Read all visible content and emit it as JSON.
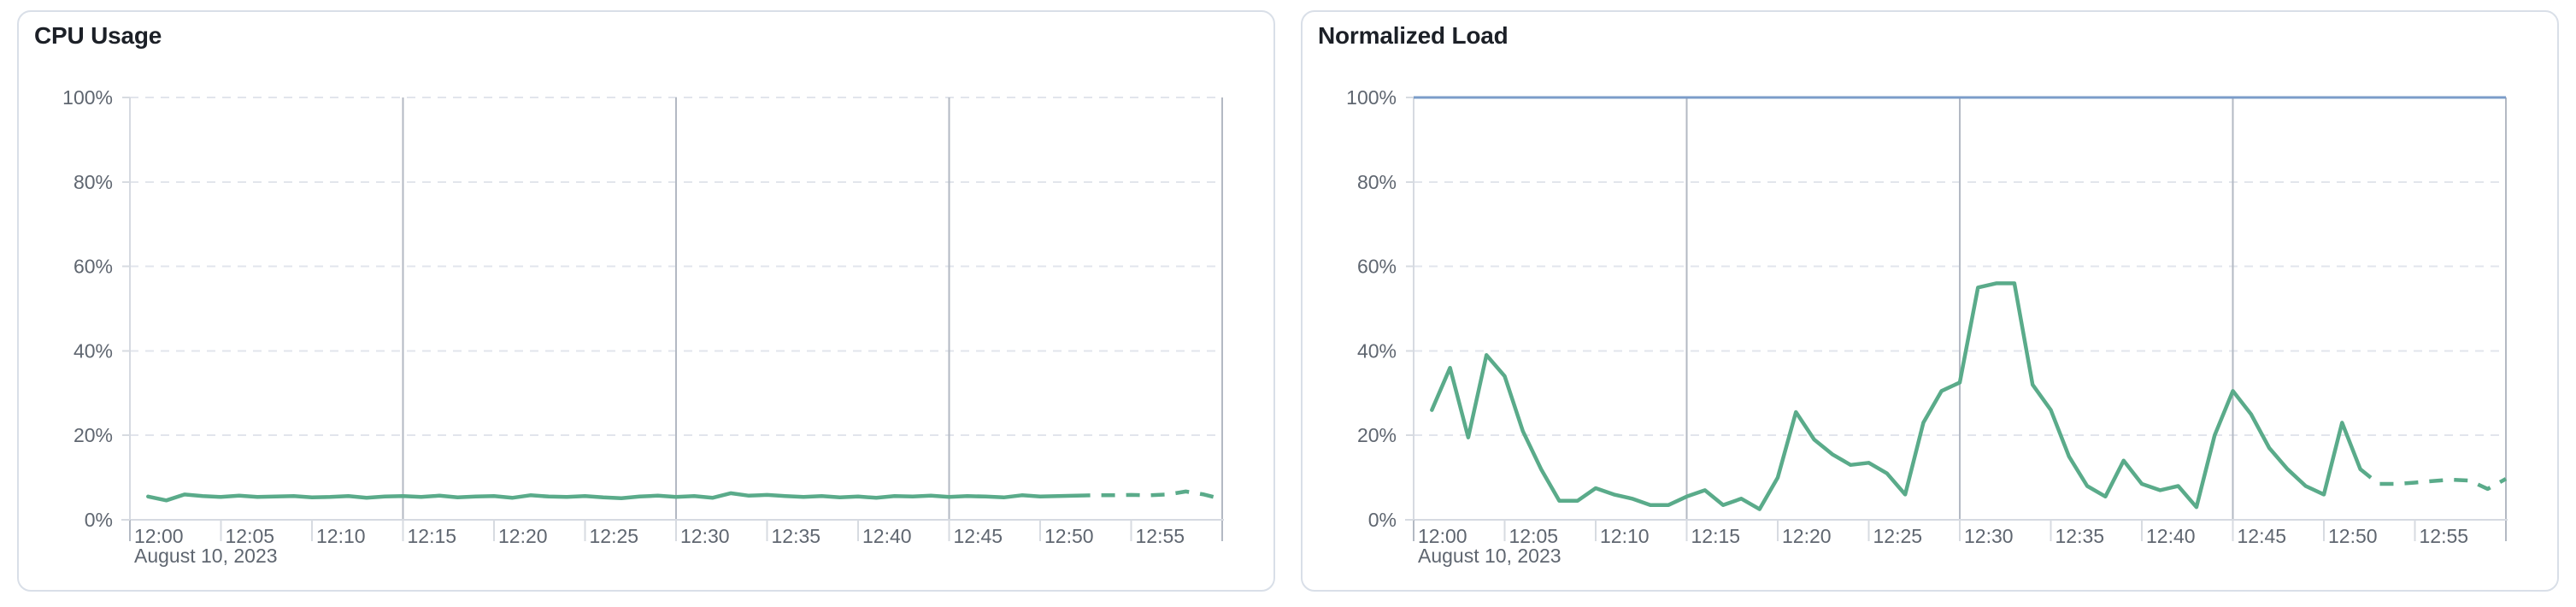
{
  "style": {
    "page_bg": "#ffffff",
    "card_bg": "#ffffff",
    "card_border": "#d9dfe8",
    "title_color": "#1c2027",
    "axis_text_color": "#5f6670",
    "gridline_dashed_color": "#e2e5ec",
    "gridline_major_color": "#b3b9c3",
    "axis_line_color": "#d6dae1",
    "tick_color": "#d7dbe1",
    "series_green": "#5aab8a",
    "threshold_blue": "#7b9cc9"
  },
  "panels": [
    {
      "title": "CPU Usage"
    },
    {
      "title": "Normalized Load"
    }
  ],
  "chart_data": [
    {
      "type": "line",
      "title": "CPU Usage",
      "xlabel": "",
      "ylabel": "",
      "x_context_label": "August 10, 2023",
      "x_tick_labels": [
        "12:00",
        "12:05",
        "12:10",
        "12:15",
        "12:20",
        "12:25",
        "12:30",
        "12:35",
        "12:40",
        "12:45",
        "12:50",
        "12:55"
      ],
      "x_tick_minutes": [
        0,
        5,
        10,
        15,
        20,
        25,
        30,
        35,
        40,
        45,
        50,
        55
      ],
      "x_domain_minutes": [
        0,
        60
      ],
      "major_vertical_gridline_minutes": [
        15,
        30,
        45,
        60
      ],
      "y_tick_labels": [
        "0%",
        "20%",
        "40%",
        "60%",
        "80%",
        "100%"
      ],
      "y_tick_values": [
        0,
        20,
        40,
        60,
        80,
        100
      ],
      "ylim": [
        0,
        100
      ],
      "grid": "horizontal-dashed, vertical-major-solid",
      "legend_position": "none",
      "series": [
        {
          "name": "cpu-usage",
          "kind": "data-with-forecast",
          "color": "#5aab8a",
          "start_minute": 1,
          "step_minutes": 1,
          "forecast_start_index": 51,
          "values": [
            5.5,
            4.6,
            6.0,
            5.6,
            5.4,
            5.7,
            5.4,
            5.5,
            5.6,
            5.3,
            5.4,
            5.6,
            5.2,
            5.5,
            5.6,
            5.4,
            5.7,
            5.3,
            5.5,
            5.6,
            5.2,
            5.8,
            5.5,
            5.4,
            5.6,
            5.3,
            5.1,
            5.5,
            5.7,
            5.4,
            5.6,
            5.2,
            6.3,
            5.7,
            5.9,
            5.6,
            5.4,
            5.6,
            5.3,
            5.5,
            5.2,
            5.6,
            5.5,
            5.7,
            5.4,
            5.6,
            5.5,
            5.3,
            5.8,
            5.5,
            5.6,
            5.7,
            5.8,
            5.8,
            5.9,
            5.8,
            6.0,
            6.7,
            6.0,
            4.9
          ]
        }
      ]
    },
    {
      "type": "line",
      "title": "Normalized Load",
      "xlabel": "",
      "ylabel": "",
      "x_context_label": "August 10, 2023",
      "x_tick_labels": [
        "12:00",
        "12:05",
        "12:10",
        "12:15",
        "12:20",
        "12:25",
        "12:30",
        "12:35",
        "12:40",
        "12:45",
        "12:50",
        "12:55"
      ],
      "x_tick_minutes": [
        0,
        5,
        10,
        15,
        20,
        25,
        30,
        35,
        40,
        45,
        50,
        55
      ],
      "x_domain_minutes": [
        0,
        60
      ],
      "major_vertical_gridline_minutes": [
        15,
        30,
        45,
        60
      ],
      "y_tick_labels": [
        "0%",
        "20%",
        "40%",
        "60%",
        "80%",
        "100%"
      ],
      "y_tick_values": [
        0,
        20,
        40,
        60,
        80,
        100
      ],
      "ylim": [
        0,
        100
      ],
      "grid": "horizontal-dashed, vertical-major-solid",
      "legend_position": "none",
      "series": [
        {
          "name": "threshold-100-percent",
          "kind": "constant-threshold",
          "color": "#7b9cc9",
          "constant_value": 100
        },
        {
          "name": "normalized-load",
          "kind": "data-with-forecast",
          "color": "#5aab8a",
          "start_minute": 1,
          "step_minutes": 1,
          "forecast_start_index": 51,
          "values": [
            26,
            36,
            19.5,
            39,
            34,
            21,
            12,
            4.5,
            4.5,
            7.5,
            6,
            5,
            3.5,
            3.5,
            5.5,
            7,
            3.5,
            5,
            2.5,
            10,
            25.5,
            19,
            15.5,
            13,
            13.5,
            11,
            6,
            23,
            30.5,
            32.5,
            55,
            56,
            56,
            32,
            26,
            15,
            8,
            5.5,
            14,
            8.5,
            7,
            8,
            3,
            20,
            30.5,
            25,
            17,
            12,
            8,
            6,
            23,
            12,
            8.5,
            8.5,
            8.8,
            9.2,
            9.5,
            9.3,
            7.3,
            9.7
          ]
        }
      ]
    }
  ]
}
